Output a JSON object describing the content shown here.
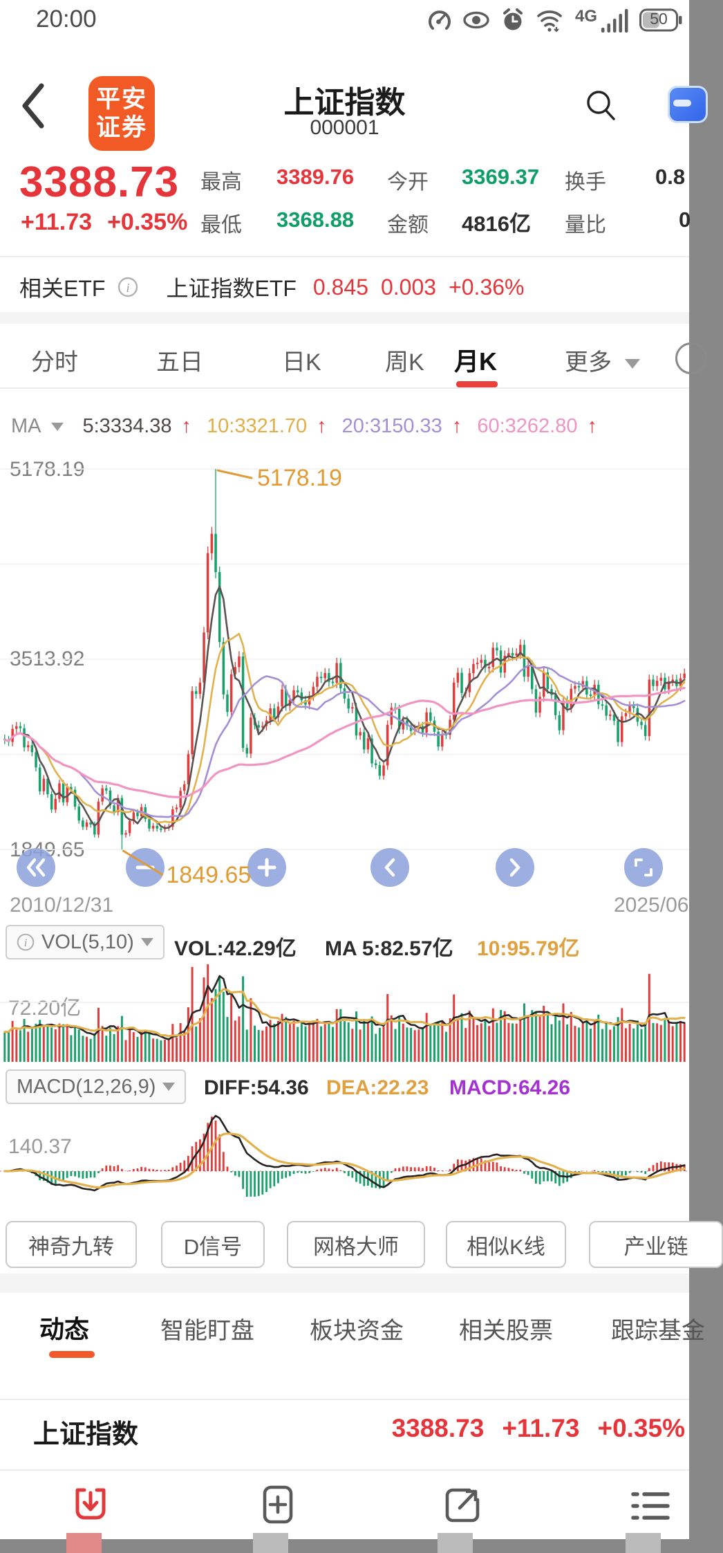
{
  "status_bar": {
    "time": "20:00",
    "network": "4G",
    "battery": "50"
  },
  "header": {
    "title": "上证指数",
    "code": "000001",
    "logo_line1": "平安",
    "logo_line2": "证券"
  },
  "quote": {
    "price": "3388.73",
    "change": "+11.73",
    "change_pct": "+0.35%",
    "stats": [
      {
        "label": "最高",
        "value": "3389.76",
        "color": "red"
      },
      {
        "label": "今开",
        "value": "3369.37",
        "color": "green"
      },
      {
        "label": "换手",
        "value": "0.8",
        "color": "dark"
      },
      {
        "label": "最低",
        "value": "3368.88",
        "color": "green"
      },
      {
        "label": "金额",
        "value": "4816亿",
        "color": "dark"
      },
      {
        "label": "量比",
        "value": "0",
        "color": "dark"
      }
    ]
  },
  "etf": {
    "label": "相关ETF",
    "name": "上证指数ETF",
    "price": "0.845",
    "change": "0.003",
    "change_pct": "+0.36%"
  },
  "period_tabs": [
    {
      "label": "分时"
    },
    {
      "label": "五日"
    },
    {
      "label": "日K"
    },
    {
      "label": "周K"
    },
    {
      "label": "月K"
    },
    {
      "label": "更多"
    }
  ],
  "ma_row": {
    "label": "MA",
    "items": [
      {
        "text": "5:3334.38"
      },
      {
        "text": "10:3321.70"
      },
      {
        "text": "20:3150.33"
      },
      {
        "text": "60:3262.80"
      }
    ],
    "arrow": "↑"
  },
  "main_chart": {
    "y_labels": [
      "5178.19",
      "3513.92",
      "1849.65"
    ],
    "peak_callout": "5178.19",
    "low_callout": "1849.65",
    "date_start": "2010/12/31",
    "date_end": "2025/06"
  },
  "vol_header": {
    "name": "VOL(5,10)",
    "vol": "VOL:42.29亿",
    "ma5": "MA 5:82.57亿",
    "ma10": "10:95.79亿"
  },
  "vol_chart": {
    "y_label": "72.20亿"
  },
  "macd_header": {
    "name": "MACD(12,26,9)",
    "diff": "DIFF:54.36",
    "dea": "DEA:22.23",
    "macd": "MACD:64.26"
  },
  "macd_chart": {
    "y_label": "140.37"
  },
  "feature_buttons": [
    "神奇九转",
    "D信号",
    "网格大师",
    "相似K线",
    "产业链"
  ],
  "bottom_tabs": [
    {
      "label": "动态",
      "active": true
    },
    {
      "label": "智能盯盘"
    },
    {
      "label": "板块资金"
    },
    {
      "label": "相关股票"
    },
    {
      "label": "跟踪基金"
    }
  ],
  "index_row": {
    "name": "上证指数",
    "price": "3388.73",
    "change": "+11.73",
    "change_pct": "+0.35%"
  },
  "bottom_nav": {
    "icons": [
      "download",
      "add",
      "share",
      "list"
    ]
  },
  "colors": {
    "red": "#e5353a",
    "green": "#0f9e68",
    "candle_up": "#e23b3b",
    "candle_down": "#18a06a",
    "ma5": "#5a5250",
    "ma10": "#e2b14c",
    "ma20": "#a38fd4",
    "ma60": "#f095c3",
    "callout_orange": "#e09b35",
    "macd_purple": "#a431d1",
    "button_blue": "#8ca0da",
    "brand_orange": "#f15a24",
    "tab_red": "#e8403b",
    "tab_orange": "#f05a28"
  },
  "chart_data": {
    "type": "candlestick",
    "period": "monthly",
    "title": "上证指数 月K",
    "x_range": [
      "2010/12/31",
      "2025/06"
    ],
    "y_axis_ticks": [
      5178.19,
      3513.92,
      1849.65
    ],
    "sub_panels": [
      "VOL(5,10)",
      "MACD(12,26,9)"
    ],
    "closes": [
      2808,
      2790,
      2905,
      2928,
      2911,
      2743,
      2762,
      2701,
      2567,
      2359,
      2468,
      2333,
      2199,
      2292,
      2428,
      2262,
      2396,
      2372,
      2225,
      2103,
      2047,
      2086,
      2068,
      1980,
      2269,
      2385,
      2365,
      2236,
      2177,
      2300,
      1979,
      1993,
      2098,
      2174,
      2141,
      2220,
      2116,
      2033,
      2056,
      2033,
      2026,
      2039,
      2048,
      2201,
      2217,
      2363,
      2420,
      2683,
      3235,
      3210,
      3310,
      3748,
      4442,
      4612,
      4277,
      3664,
      3206,
      3053,
      3383,
      3445,
      3539,
      2738,
      2688,
      3004,
      2938,
      2917,
      2930,
      2979,
      3085,
      3005,
      3100,
      3250,
      3104,
      3159,
      3242,
      3223,
      3155,
      3117,
      3192,
      3273,
      3361,
      3349,
      3393,
      3317,
      3307,
      3481,
      3259,
      3169,
      3082,
      3095,
      2847,
      2876,
      2725,
      2821,
      2603,
      2588,
      2494,
      2585,
      2941,
      3091,
      3078,
      2899,
      2979,
      2933,
      2886,
      2905,
      2929,
      2872,
      3050,
      2977,
      2880,
      2750,
      2860,
      2852,
      2985,
      3310,
      3396,
      3218,
      3225,
      3392,
      3473,
      3483,
      3509,
      3442,
      3447,
      3615,
      3591,
      3397,
      3544,
      3568,
      3547,
      3564,
      3640,
      3361,
      3462,
      3252,
      3047,
      3186,
      3399,
      3253,
      3202,
      3024,
      2893,
      3151,
      3089,
      3256,
      3280,
      3273,
      3323,
      3205,
      3202,
      3291,
      3119,
      3110,
      3019,
      3030,
      2975,
      2789,
      3015,
      3041,
      3105,
      3087,
      2967,
      2938,
      2842,
      3336,
      3280,
      3326,
      3352,
      3251,
      3321,
      3336,
      3279,
      3347,
      3388.73
    ],
    "annotations": {
      "high_idx": 54,
      "high": 5178.19,
      "low_idx": 30,
      "low": 1849.65
    },
    "indicators": {
      "ma": [
        5,
        10,
        20,
        60
      ],
      "vol_ma": [
        5,
        10
      ],
      "macd": [
        12,
        26,
        9
      ]
    }
  }
}
